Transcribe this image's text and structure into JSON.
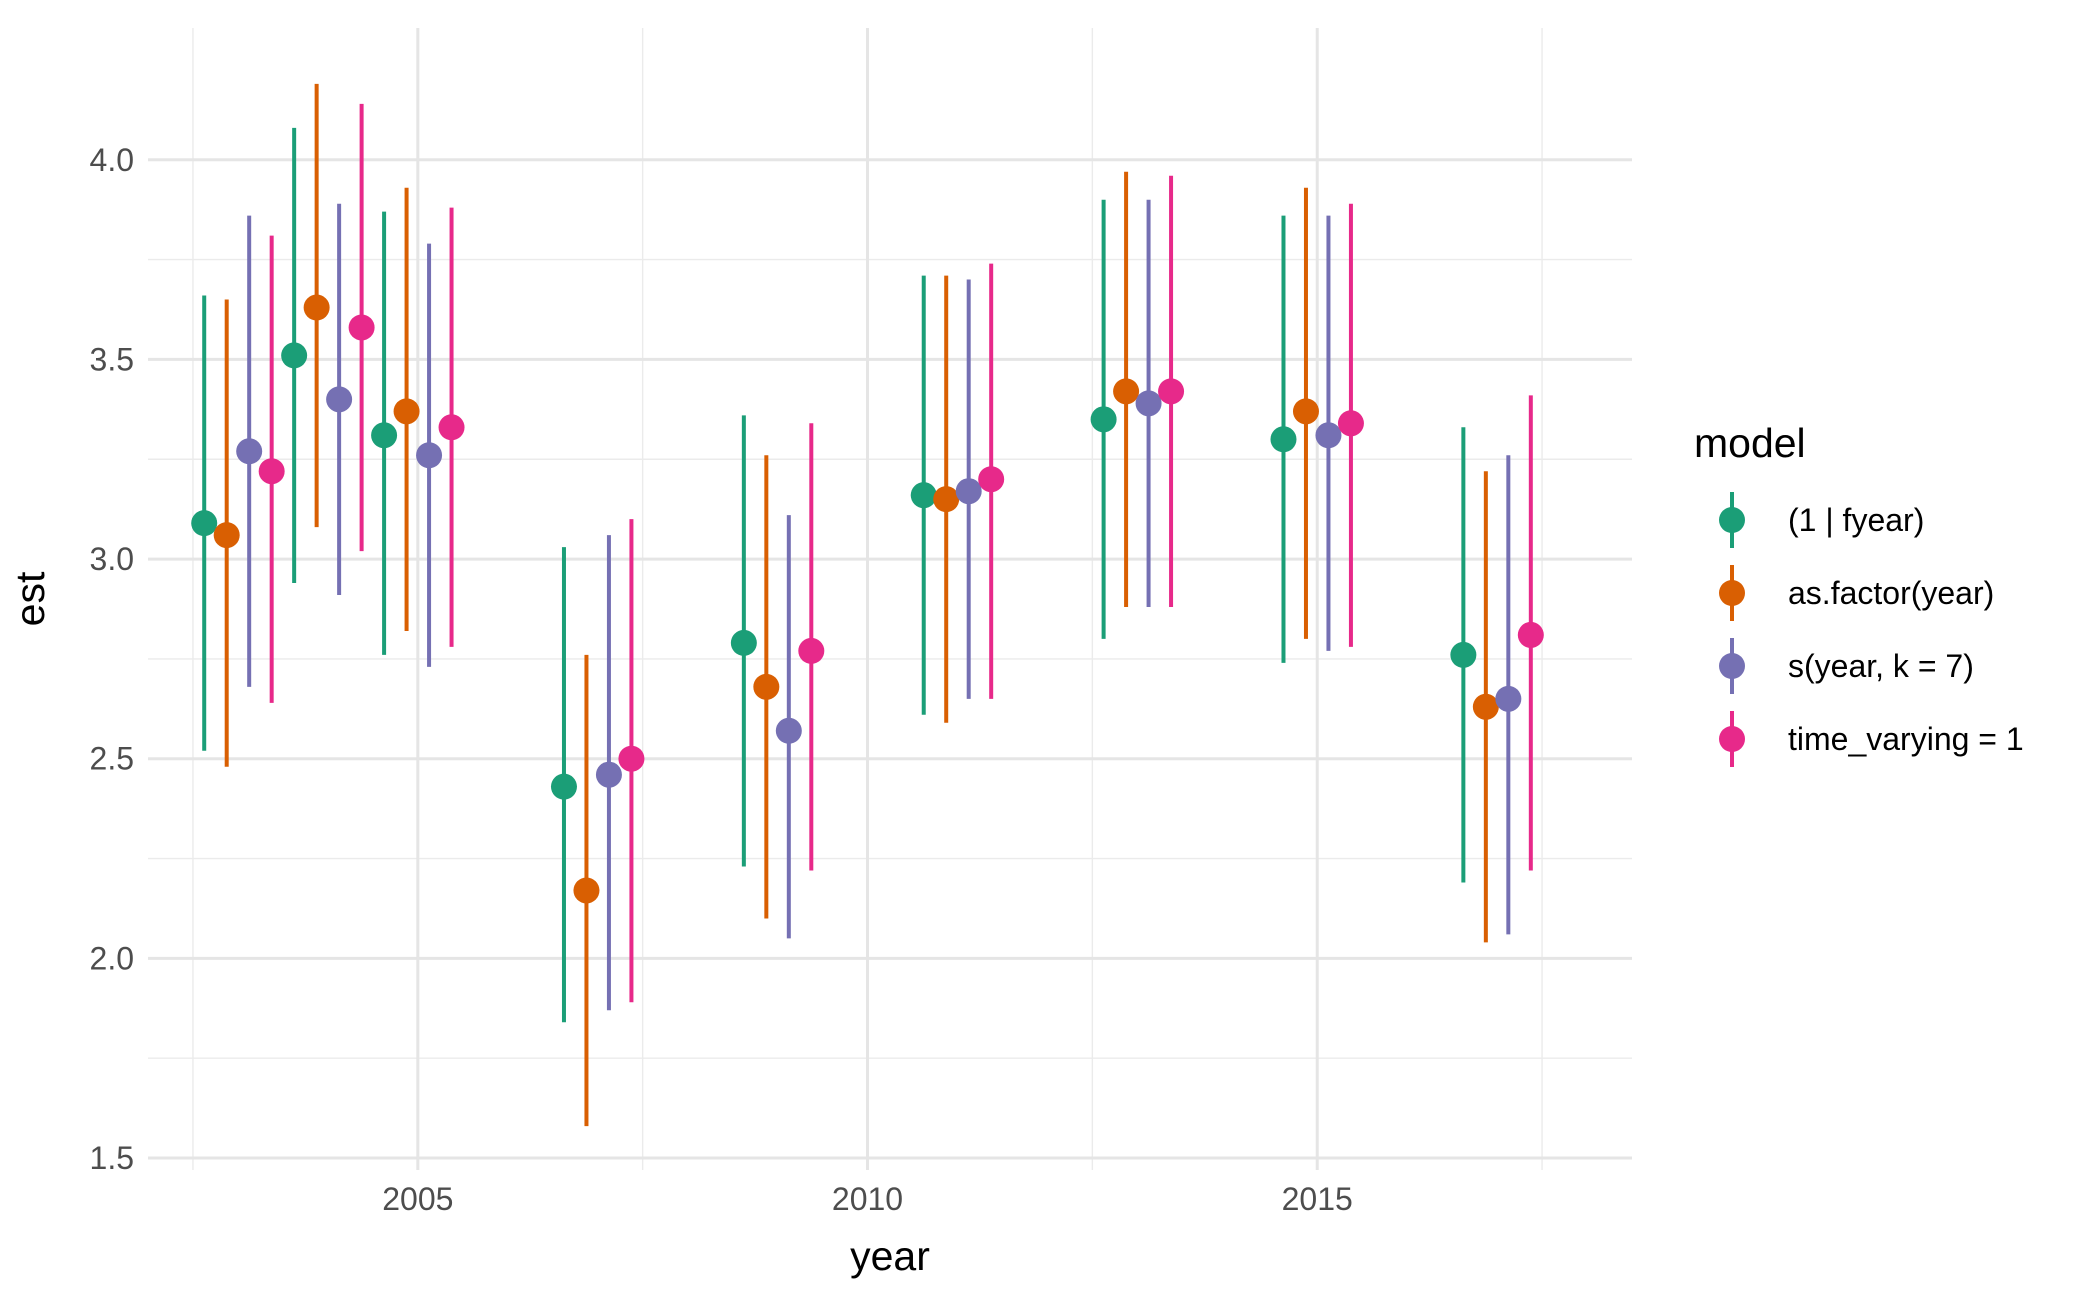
{
  "chart_data": {
    "type": "scatter",
    "subtype": "pointrange",
    "title": "",
    "xlabel": "year",
    "ylabel": "est",
    "xlim": [
      2002.0,
      2018.5
    ],
    "ylim": [
      1.47,
      4.33
    ],
    "xticks": [
      2005,
      2010,
      2015
    ],
    "xtick_labels": [
      "2005",
      "2010",
      "2015"
    ],
    "yticks": [
      1.5,
      2.0,
      2.5,
      3.0,
      3.5,
      4.0
    ],
    "ytick_labels": [
      "1.5",
      "2.0",
      "2.5",
      "3.0",
      "3.5",
      "4.0"
    ],
    "grid": true,
    "legend_title": "model",
    "legend_position": "right",
    "dodge_width": 1.0,
    "series": [
      {
        "name": "(1 | fyear)",
        "color": "#1b9e77",
        "x": [
          2003,
          2004,
          2005,
          2007,
          2009,
          2011,
          2013,
          2015,
          2017
        ],
        "est": [
          3.09,
          3.51,
          3.31,
          2.43,
          2.79,
          3.16,
          3.35,
          3.3,
          2.76
        ],
        "lwr": [
          2.52,
          2.94,
          2.76,
          1.84,
          2.23,
          2.61,
          2.8,
          2.74,
          2.19
        ],
        "upr": [
          3.66,
          4.08,
          3.87,
          3.03,
          3.36,
          3.71,
          3.9,
          3.86,
          3.33
        ]
      },
      {
        "name": "as.factor(year)",
        "color": "#d95f02",
        "x": [
          2003,
          2004,
          2005,
          2007,
          2009,
          2011,
          2013,
          2015,
          2017
        ],
        "est": [
          3.06,
          3.63,
          3.37,
          2.17,
          2.68,
          3.15,
          3.42,
          3.37,
          2.63
        ],
        "lwr": [
          2.48,
          3.08,
          2.82,
          1.58,
          2.1,
          2.59,
          2.88,
          2.8,
          2.04
        ],
        "upr": [
          3.65,
          4.19,
          3.93,
          2.76,
          3.26,
          3.71,
          3.97,
          3.93,
          3.22
        ]
      },
      {
        "name": "s(year, k = 7)",
        "color": "#7570b3",
        "x": [
          2003,
          2004,
          2005,
          2007,
          2009,
          2011,
          2013,
          2015,
          2017
        ],
        "est": [
          3.27,
          3.4,
          3.26,
          2.46,
          2.57,
          3.17,
          3.39,
          3.31,
          2.65
        ],
        "lwr": [
          2.68,
          2.91,
          2.73,
          1.87,
          2.05,
          2.65,
          2.88,
          2.77,
          2.06
        ],
        "upr": [
          3.86,
          3.89,
          3.79,
          3.06,
          3.11,
          3.7,
          3.9,
          3.86,
          3.26
        ]
      },
      {
        "name": "time_varying = 1",
        "color": "#e7298a",
        "x": [
          2003,
          2004,
          2005,
          2007,
          2009,
          2011,
          2013,
          2015,
          2017
        ],
        "est": [
          3.22,
          3.58,
          3.33,
          2.5,
          2.77,
          3.2,
          3.42,
          3.34,
          2.81
        ],
        "lwr": [
          2.64,
          3.02,
          2.78,
          1.89,
          2.22,
          2.65,
          2.88,
          2.78,
          2.22
        ],
        "upr": [
          3.81,
          4.14,
          3.88,
          3.1,
          3.34,
          3.74,
          3.96,
          3.89,
          3.41
        ]
      }
    ]
  }
}
